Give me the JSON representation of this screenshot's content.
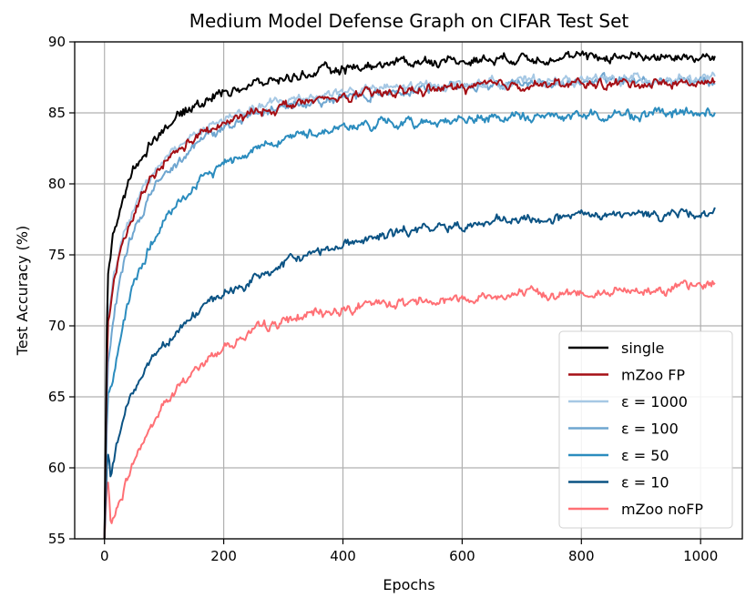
{
  "chart_data": {
    "type": "line",
    "title": "Medium Model Defense Graph on CIFAR Test Set",
    "xlabel": "Epochs",
    "ylabel": "Test Accuracy (%)",
    "xlim": [
      -50,
      1070
    ],
    "ylim": [
      55,
      90
    ],
    "xticks": [
      0,
      200,
      400,
      600,
      800,
      1000
    ],
    "yticks": [
      55,
      60,
      65,
      70,
      75,
      80,
      85,
      90
    ],
    "grid": true,
    "legend_position": "lower-right",
    "series": [
      {
        "name": "single",
        "color": "#000000",
        "x": [
          0,
          5,
          15,
          30,
          50,
          75,
          100,
          150,
          200,
          250,
          300,
          350,
          400,
          500,
          600,
          700,
          800,
          900,
          1000,
          1025
        ],
        "y": [
          55,
          73.5,
          76.5,
          79,
          81,
          82.8,
          84,
          85.5,
          86.5,
          87,
          87.4,
          87.8,
          88.1,
          88.6,
          88.7,
          88.9,
          88.9,
          89,
          88.9,
          88.9
        ]
      },
      {
        "name": "mZoo FP",
        "color": "#a50f15",
        "x": [
          0,
          5,
          15,
          30,
          50,
          75,
          100,
          150,
          200,
          250,
          300,
          350,
          400,
          500,
          600,
          700,
          800,
          900,
          1000,
          1025
        ],
        "y": [
          55,
          70,
          73,
          75.5,
          78,
          80,
          81.5,
          83.2,
          84.2,
          85,
          85.5,
          85.8,
          86.1,
          86.5,
          86.8,
          87,
          87,
          87.1,
          87.1,
          87.1
        ]
      },
      {
        "name": "ε = 1000",
        "color": "#a6c8e4",
        "x": [
          0,
          5,
          15,
          30,
          50,
          75,
          100,
          150,
          200,
          250,
          300,
          350,
          400,
          500,
          600,
          700,
          800,
          900,
          1000,
          1025
        ],
        "y": [
          55,
          70.5,
          73.5,
          76,
          78.3,
          80.3,
          81.8,
          83.5,
          84.5,
          85.3,
          85.8,
          86.2,
          86.5,
          86.8,
          87,
          87.2,
          87.3,
          87.4,
          87.4,
          87.4
        ]
      },
      {
        "name": "ε = 100",
        "color": "#6fa6d0",
        "x": [
          0,
          5,
          15,
          30,
          50,
          75,
          100,
          150,
          200,
          250,
          300,
          350,
          400,
          500,
          600,
          700,
          800,
          900,
          1000,
          1025
        ],
        "y": [
          55,
          67,
          70.5,
          74,
          76.8,
          79,
          80.8,
          82.8,
          84,
          84.8,
          85.4,
          85.8,
          86.1,
          86.6,
          86.9,
          87.1,
          87.2,
          87.3,
          87.3,
          87.3
        ]
      },
      {
        "name": "ε = 50",
        "color": "#2b8cbe",
        "x": [
          0,
          5,
          15,
          30,
          50,
          75,
          100,
          150,
          200,
          250,
          300,
          350,
          400,
          500,
          600,
          700,
          800,
          900,
          1000,
          1025
        ],
        "y": [
          55,
          65,
          66.5,
          70,
          73,
          75.5,
          77.3,
          79.8,
          81.5,
          82.5,
          83.2,
          83.6,
          84,
          84.3,
          84.5,
          84.7,
          84.8,
          84.9,
          85,
          85
        ]
      },
      {
        "name": "ε = 10",
        "color": "#0b5384",
        "x": [
          0,
          5,
          10,
          15,
          25,
          40,
          60,
          80,
          100,
          150,
          200,
          250,
          300,
          350,
          400,
          500,
          600,
          700,
          800,
          900,
          1000,
          1025
        ],
        "y": [
          55,
          61.5,
          59.6,
          60.5,
          62.5,
          64.5,
          66.5,
          67.8,
          68.8,
          70.8,
          72.2,
          73.2,
          74.3,
          75.2,
          75.8,
          76.6,
          77.1,
          77.4,
          77.7,
          77.8,
          78,
          77.8
        ]
      },
      {
        "name": "mZoo noFP",
        "color": "#ff7075",
        "x": [
          0,
          5,
          10,
          15,
          25,
          40,
          60,
          80,
          100,
          150,
          200,
          250,
          300,
          350,
          400,
          500,
          600,
          700,
          800,
          900,
          1000,
          1025
        ],
        "y": [
          55,
          59.5,
          56.2,
          56.5,
          57.5,
          59.5,
          61.5,
          63,
          64.5,
          66.8,
          68.5,
          69.6,
          70.3,
          70.8,
          71.2,
          71.7,
          72,
          72.2,
          72.3,
          72.5,
          72.8,
          73
        ]
      }
    ]
  }
}
